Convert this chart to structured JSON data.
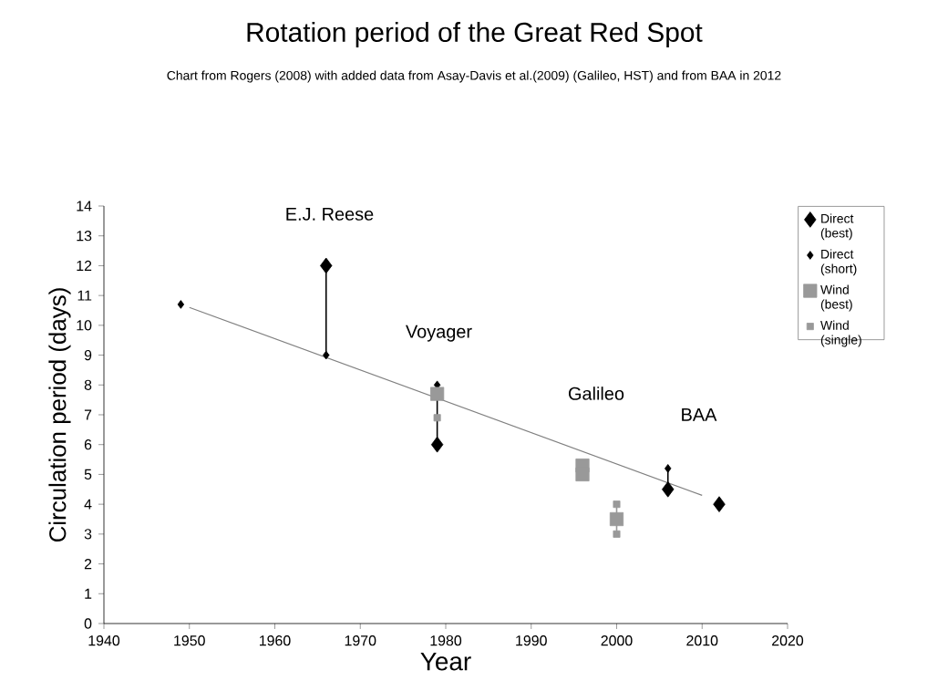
{
  "chart_data": {
    "type": "scatter",
    "title": "Rotation period of the Great Red Spot",
    "subtitle": "Chart from Rogers (2008) with added data from Asay-Davis et al.(2009) (Galileo, HST) and from BAA in 2012",
    "xlabel": "Year",
    "ylabel": "Circulation period (days)",
    "xlim": [
      1940,
      2020
    ],
    "xticks": [
      1940,
      1950,
      1960,
      1970,
      1980,
      1990,
      2000,
      2010,
      2020
    ],
    "ylim": [
      0,
      14
    ],
    "yticks": [
      0,
      1,
      2,
      3,
      4,
      5,
      6,
      7,
      8,
      9,
      10,
      11,
      12,
      13,
      14
    ],
    "grid": false,
    "legend": "right",
    "series": [
      {
        "type": "line",
        "color": "#808080",
        "marker": "none",
        "x": [
          1950,
          2010
        ],
        "values": [
          10.6,
          4.3
        ]
      },
      {
        "type": "line",
        "color": "#000000",
        "marker": "none",
        "x": [
          1966,
          1966
        ],
        "values": [
          9,
          12
        ]
      },
      {
        "type": "line",
        "color": "#000000",
        "marker": "none",
        "x": [
          1979,
          1979
        ],
        "values": [
          6,
          8
        ]
      },
      {
        "type": "line",
        "color": "#000000",
        "marker": "none",
        "x": [
          2006,
          2006
        ],
        "values": [
          4.5,
          5.2
        ]
      },
      {
        "type": "line",
        "color": "#999999",
        "marker": "none",
        "x": [
          2000,
          2000
        ],
        "values": [
          3,
          4
        ]
      },
      {
        "name": "Direct (best)",
        "color": "#000000",
        "marker": "diamond",
        "x": [
          1966,
          1979,
          2006,
          2012
        ],
        "values": [
          12,
          6,
          4.5,
          4
        ]
      },
      {
        "name": "Direct (short)",
        "color": "#000000",
        "marker": "diamond",
        "x": [
          1949,
          1966,
          1979,
          2006
        ],
        "values": [
          10.7,
          9,
          8,
          5.2
        ]
      },
      {
        "name": "Wind (best)",
        "color": "#999999",
        "marker": "square",
        "x": [
          1979,
          1996,
          1996,
          2000
        ],
        "values": [
          7.7,
          5.3,
          5.0,
          3.5
        ]
      },
      {
        "name": "Wind (single)",
        "color": "#999999",
        "marker": "square",
        "x": [
          1979,
          2000,
          2000
        ],
        "values": [
          6.9,
          4.0,
          3.0
        ]
      }
    ],
    "annotations": [
      "E.J. Reese",
      "Voyager",
      "Galileo",
      "BAA"
    ]
  }
}
